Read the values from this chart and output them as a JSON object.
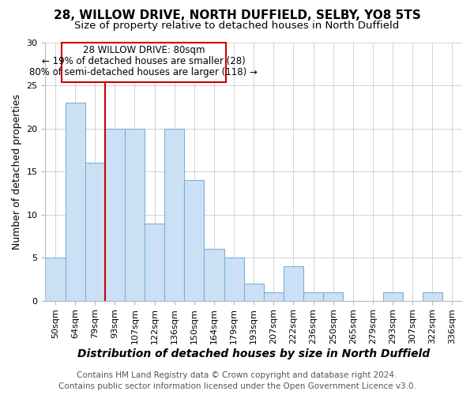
{
  "title1": "28, WILLOW DRIVE, NORTH DUFFIELD, SELBY, YO8 5TS",
  "title2": "Size of property relative to detached houses in North Duffield",
  "xlabel": "Distribution of detached houses by size in North Duffield",
  "ylabel": "Number of detached properties",
  "footer1": "Contains HM Land Registry data © Crown copyright and database right 2024.",
  "footer2": "Contains public sector information licensed under the Open Government Licence v3.0.",
  "annotation_title": "28 WILLOW DRIVE: 80sqm",
  "annotation_line2": "← 19% of detached houses are smaller (28)",
  "annotation_line3": "80% of semi-detached houses are larger (118) →",
  "bin_labels": [
    "50sqm",
    "64sqm",
    "79sqm",
    "93sqm",
    "107sqm",
    "122sqm",
    "136sqm",
    "150sqm",
    "164sqm",
    "179sqm",
    "193sqm",
    "207sqm",
    "222sqm",
    "236sqm",
    "250sqm",
    "265sqm",
    "279sqm",
    "293sqm",
    "307sqm",
    "322sqm",
    "336sqm"
  ],
  "bar_values": [
    5,
    23,
    16,
    20,
    20,
    9,
    20,
    14,
    6,
    5,
    2,
    1,
    4,
    1,
    1,
    0,
    0,
    1,
    0,
    1,
    0
  ],
  "bar_color": "#cce0f5",
  "bar_edge_color": "#7ab0d8",
  "red_line_x": 2.5,
  "red_line_color": "#cc0000",
  "ylim": [
    0,
    30
  ],
  "yticks": [
    0,
    5,
    10,
    15,
    20,
    25,
    30
  ],
  "grid_color": "#cccccc",
  "background_color": "#ffffff",
  "title1_fontsize": 11,
  "title2_fontsize": 9.5,
  "ylabel_fontsize": 9,
  "xlabel_fontsize": 10,
  "tick_fontsize": 8,
  "annotation_fontsize": 8.5,
  "footer_fontsize": 7.5
}
